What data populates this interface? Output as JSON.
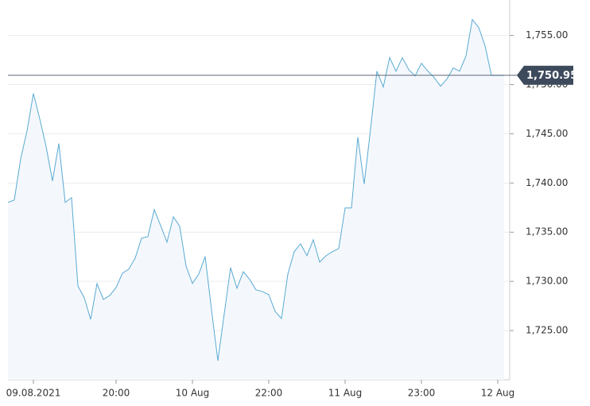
{
  "chart_data": {
    "type": "line",
    "categories": [
      null,
      null,
      null,
      null,
      "09.08.2021",
      null,
      null,
      null,
      null,
      null,
      null,
      null,
      null,
      null,
      null,
      null,
      null,
      "20:00",
      null,
      null,
      null,
      null,
      null,
      null,
      null,
      null,
      null,
      null,
      null,
      "10 Aug",
      null,
      null,
      null,
      null,
      null,
      null,
      null,
      null,
      null,
      null,
      null,
      "22:00",
      null,
      null,
      null,
      null,
      null,
      null,
      null,
      null,
      null,
      null,
      null,
      "11 Aug",
      null,
      null,
      null,
      null,
      null,
      null,
      null,
      null,
      null,
      null,
      null,
      "23:00",
      null,
      null,
      null,
      null,
      null,
      null,
      null,
      null,
      null,
      null,
      null,
      "12 Aug",
      null
    ],
    "values": [
      1738.03,
      1738.27,
      1742.47,
      1745.3,
      1749.1,
      1746.52,
      1743.69,
      1740.21,
      1744.01,
      1738.03,
      1738.51,
      1729.54,
      1728.33,
      1726.14,
      1729.78,
      1728.17,
      1728.57,
      1729.38,
      1730.83,
      1731.24,
      1732.37,
      1734.39,
      1734.55,
      1737.3,
      1735.68,
      1733.99,
      1736.57,
      1735.6,
      1731.56,
      1729.78,
      1730.75,
      1732.53,
      1727.11,
      1721.94,
      1726.71,
      1731.4,
      1729.3,
      1730.99,
      1730.19,
      1729.14,
      1728.97,
      1728.65,
      1726.95,
      1726.22,
      1730.75,
      1733.02,
      1733.82,
      1732.61,
      1734.23,
      1731.96,
      1732.61,
      1733.02,
      1733.34,
      1737.46,
      1737.46,
      1744.66,
      1739.89,
      1745.46,
      1751.37,
      1749.75,
      1752.74,
      1751.37,
      1752.74,
      1751.53,
      1750.88,
      1752.17,
      1751.37,
      1750.72,
      1749.83,
      1750.56,
      1751.69,
      1751.37,
      1752.9,
      1756.62,
      1755.81,
      1753.95,
      1750.95,
      1750.95,
      1750.95
    ],
    "color": "#5aaad3",
    "ylim": [
      1720,
      1758.6
    ],
    "yticks": [
      {
        "value": 1725,
        "label": "1,725.00"
      },
      {
        "value": 1730,
        "label": "1,730.00"
      },
      {
        "value": 1735,
        "label": "1,735.00"
      },
      {
        "value": 1740,
        "label": "1,740.00"
      },
      {
        "value": 1745,
        "label": "1,745.00"
      },
      {
        "value": 1750,
        "label": "1,750.00"
      },
      {
        "value": 1755,
        "label": "1,755.00"
      }
    ],
    "price_line": {
      "value": 1750.95,
      "label": "1,750.95"
    },
    "grid": true
  }
}
